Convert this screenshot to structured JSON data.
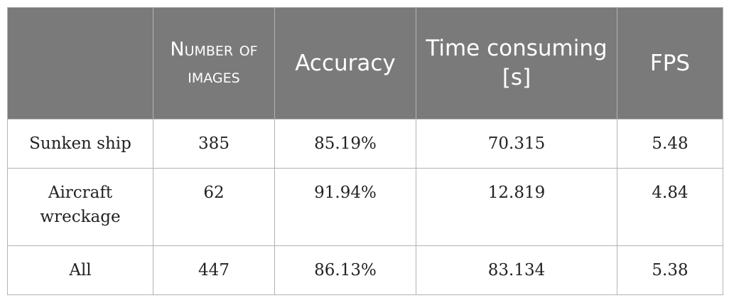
{
  "table": {
    "headers": [
      "",
      "Number of images",
      "Accuracy",
      "Time consuming [s]",
      "FPS"
    ],
    "rows": [
      [
        "Sunken ship",
        "385",
        "85.19%",
        "70.315",
        "5.48"
      ],
      [
        "Aircraft wreckage",
        "62",
        "91.94%",
        "12.819",
        "4.84"
      ],
      [
        "All",
        "447",
        "86.13%",
        "83.134",
        "5.38"
      ]
    ]
  }
}
